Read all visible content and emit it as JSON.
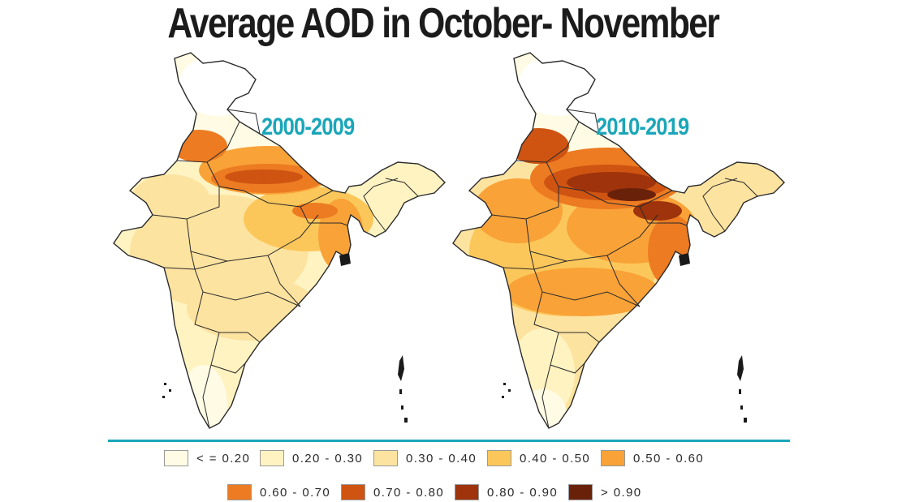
{
  "title": "Average AOD in October- November",
  "maps": [
    {
      "period": "2000-2009"
    },
    {
      "period": "2010-2019"
    }
  ],
  "legend": [
    {
      "label": "< =  0.20",
      "color": "#fffbe4"
    },
    {
      "label": "0.20 - 0.30",
      "color": "#fff3c2"
    },
    {
      "label": "0.30 - 0.40",
      "color": "#fde3a0"
    },
    {
      "label": "0.40 - 0.50",
      "color": "#fcc75a"
    },
    {
      "label": "0.50 - 0.60",
      "color": "#f9a237"
    },
    {
      "label": "0.60 - 0.70",
      "color": "#ec7b22"
    },
    {
      "label": "0.70 - 0.80",
      "color": "#cf5412"
    },
    {
      "label": "0.80 - 0.90",
      "color": "#9e330c"
    },
    {
      "label": ">  0.90",
      "color": "#6a210a"
    }
  ],
  "colors": {
    "accent": "#1aa6b9",
    "border": "#2a2a2a"
  }
}
